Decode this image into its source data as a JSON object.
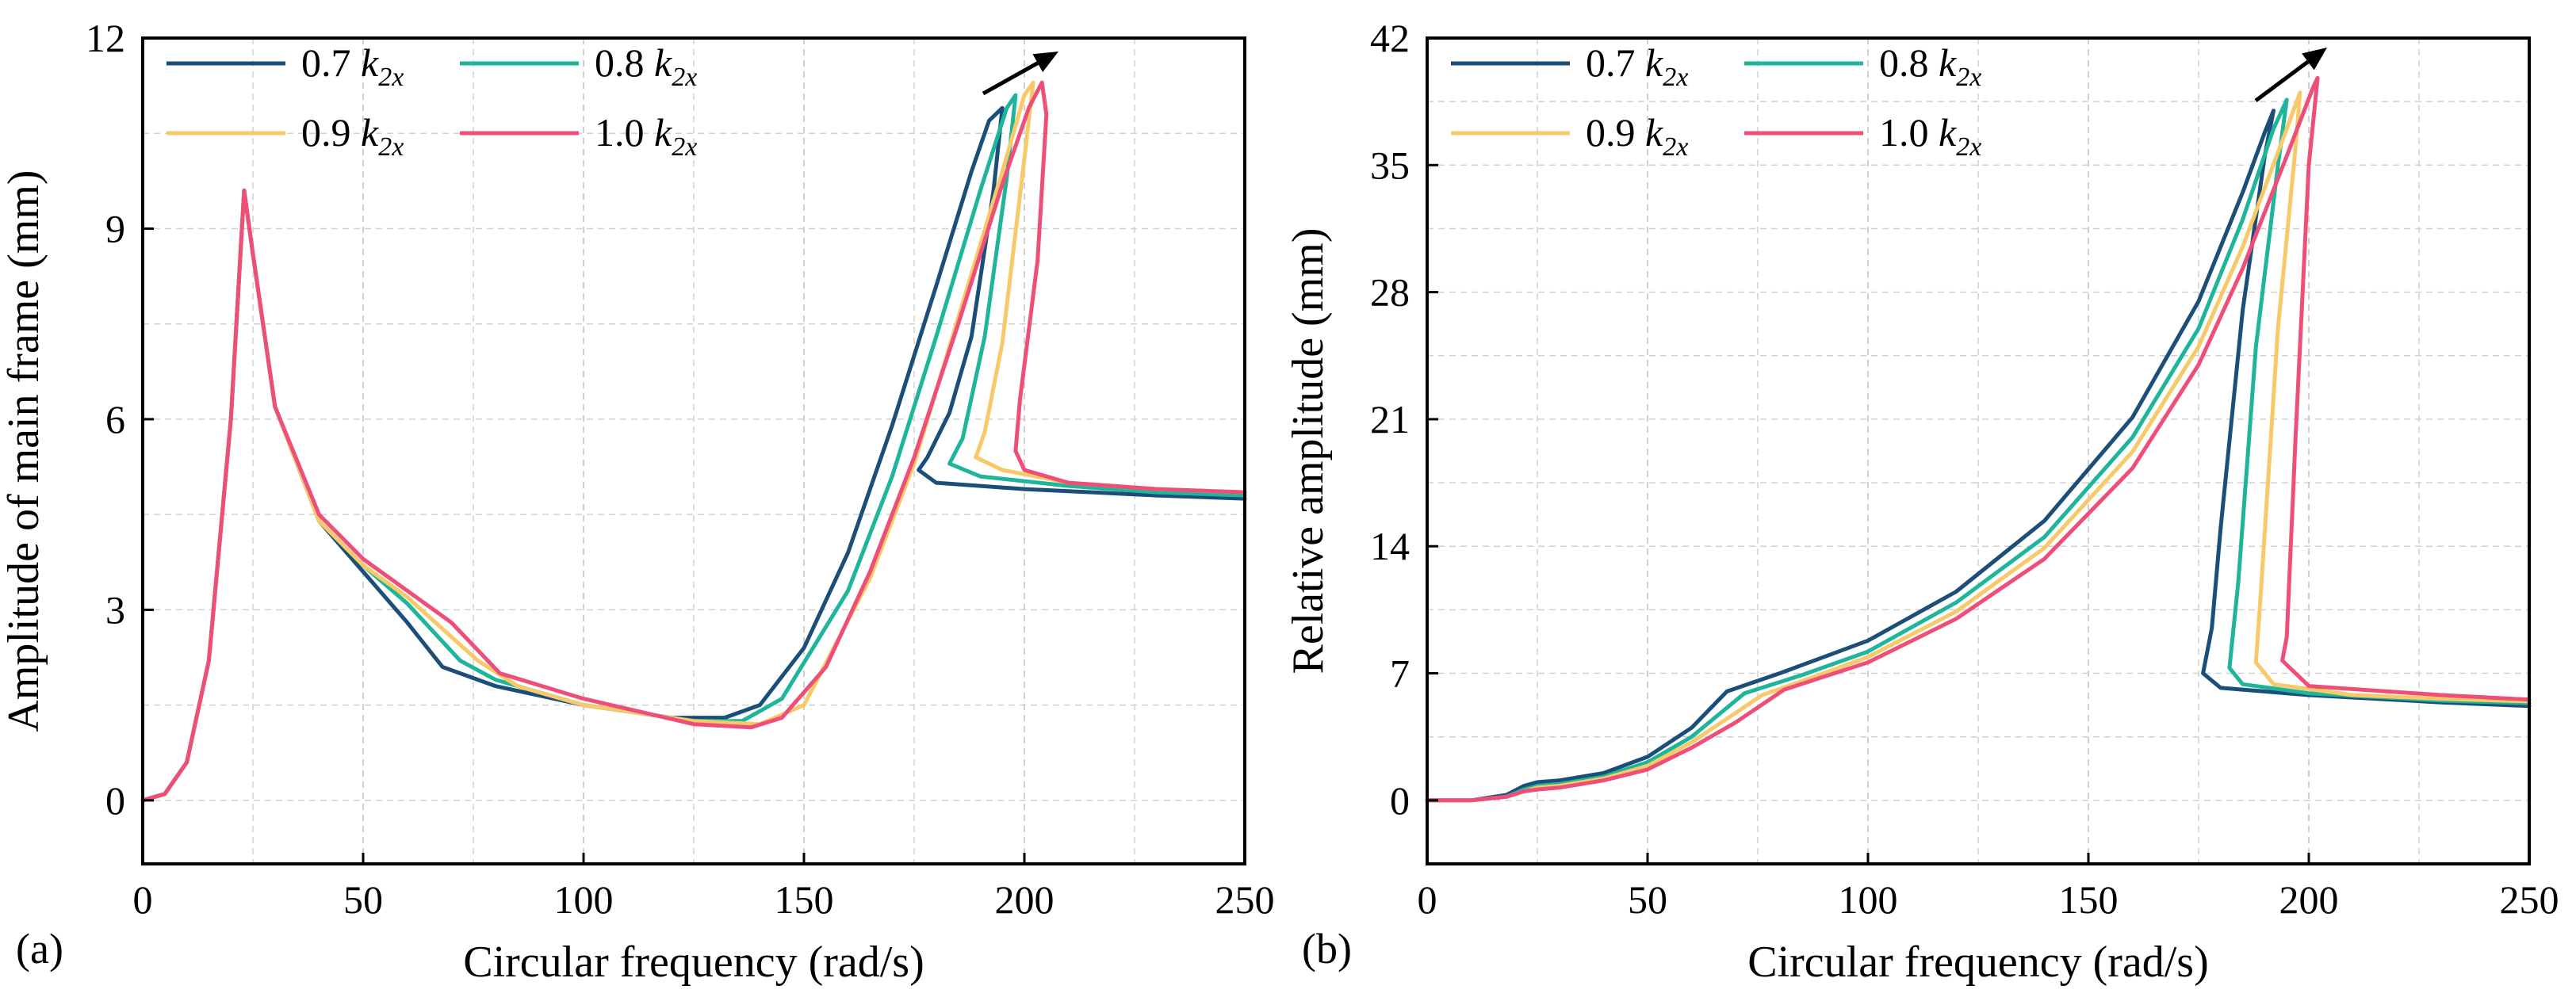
{
  "colors": {
    "c07": "#1b4f7a",
    "c08": "#1fb59a",
    "c09": "#f7c968",
    "c10": "#ee4f78",
    "grid": "#d0d0d0",
    "axis": "#000000"
  },
  "chart_data": [
    {
      "type": "line",
      "panel_label": "(a)",
      "xlabel": "Circular frequency (rad/s)",
      "ylabel": "Amplitude of main frame (mm)",
      "xlim": [
        0,
        250
      ],
      "ylim": [
        -1,
        12
      ],
      "xticks": [
        0,
        50,
        100,
        150,
        200,
        250
      ],
      "yticks": [
        0,
        3,
        6,
        9,
        12
      ],
      "xtick_labels": [
        "0",
        "50",
        "100",
        "150",
        "200",
        "250"
      ],
      "ytick_labels": [
        "0",
        "3",
        "6",
        "9",
        "12"
      ],
      "grid": true,
      "legend_position": "top-left",
      "annotation": "arrow pointing up-right near resonance peaks",
      "series": [
        {
          "name": "0.7",
          "legend_number": "0.7",
          "legend_k": "k",
          "legend_sub": "2x",
          "color_key": "c07",
          "x": [
            0,
            5,
            10,
            15,
            20,
            23,
            25,
            30,
            40,
            50,
            60,
            68,
            80,
            100,
            120,
            132,
            140,
            150,
            160,
            170,
            180,
            188,
            192,
            195,
            193,
            188,
            183,
            178,
            176,
            180,
            200,
            230,
            250
          ],
          "y": [
            0,
            0.1,
            0.6,
            2.2,
            6,
            9.6,
            8.6,
            6.2,
            4.4,
            3.6,
            2.8,
            2.1,
            1.8,
            1.5,
            1.3,
            1.3,
            1.5,
            2.4,
            3.9,
            5.9,
            8.1,
            9.9,
            10.7,
            10.9,
            9.6,
            7.3,
            6.1,
            5.4,
            5.2,
            5.0,
            4.9,
            4.8,
            4.75
          ]
        },
        {
          "name": "0.8",
          "legend_number": "0.8",
          "legend_k": "k",
          "legend_sub": "2x",
          "color_key": "c08",
          "x": [
            0,
            5,
            10,
            15,
            20,
            23,
            25,
            30,
            40,
            50,
            60,
            72,
            80,
            100,
            125,
            136,
            145,
            160,
            170,
            180,
            190,
            196,
            198,
            196,
            191,
            186,
            183,
            190,
            210,
            230,
            250
          ],
          "y": [
            0,
            0.1,
            0.6,
            2.2,
            6,
            9.6,
            8.6,
            6.2,
            4.4,
            3.7,
            3.1,
            2.2,
            1.9,
            1.5,
            1.25,
            1.25,
            1.6,
            3.3,
            5.1,
            7.3,
            9.6,
            10.9,
            11.1,
            9.8,
            7.3,
            5.7,
            5.3,
            5.1,
            4.95,
            4.85,
            4.8
          ]
        },
        {
          "name": "0.9",
          "legend_number": "0.9",
          "legend_k": "k",
          "legend_sub": "2x",
          "color_key": "c09",
          "x": [
            0,
            5,
            10,
            15,
            20,
            23,
            25,
            30,
            40,
            50,
            60,
            76,
            85,
            100,
            125,
            140,
            150,
            165,
            175,
            185,
            195,
            200,
            202,
            200,
            195,
            191,
            189,
            195,
            210,
            230,
            250
          ],
          "y": [
            0,
            0.1,
            0.6,
            2.2,
            6,
            9.6,
            8.6,
            6.2,
            4.4,
            3.7,
            3.2,
            2.2,
            1.8,
            1.5,
            1.25,
            1.2,
            1.5,
            3.5,
            5.3,
            7.6,
            9.9,
            11.1,
            11.3,
            10.1,
            7.2,
            5.8,
            5.4,
            5.2,
            5.0,
            4.9,
            4.85
          ]
        },
        {
          "name": "1.0",
          "legend_number": "1.0",
          "legend_k": "k",
          "legend_sub": "2x",
          "color_key": "c10",
          "x": [
            0,
            5,
            10,
            15,
            20,
            23,
            25,
            30,
            40,
            50,
            60,
            70,
            81,
            100,
            125,
            138,
            145,
            155,
            165,
            175,
            185,
            195,
            201,
            204,
            205,
            203,
            199,
            198,
            200,
            210,
            230,
            250
          ],
          "y": [
            0,
            0.1,
            0.6,
            2.2,
            6,
            9.6,
            8.6,
            6.2,
            4.5,
            3.8,
            3.3,
            2.8,
            2.0,
            1.6,
            1.2,
            1.15,
            1.3,
            2.1,
            3.6,
            5.4,
            7.5,
            9.7,
            10.9,
            11.3,
            10.8,
            8.5,
            6.3,
            5.5,
            5.2,
            5.0,
            4.9,
            4.85
          ]
        }
      ]
    },
    {
      "type": "line",
      "panel_label": "(b)",
      "xlabel": "Circular frequency (rad/s)",
      "ylabel": "Relative amplitude (mm)",
      "xlim": [
        0,
        250
      ],
      "ylim": [
        -3.5,
        42
      ],
      "xticks": [
        0,
        50,
        100,
        150,
        200,
        250
      ],
      "yticks": [
        0,
        7,
        14,
        21,
        28,
        35,
        42
      ],
      "xtick_labels": [
        "0",
        "50",
        "100",
        "150",
        "200",
        "250"
      ],
      "ytick_labels": [
        "0",
        "7",
        "14",
        "21",
        "28",
        "35",
        "42"
      ],
      "grid": true,
      "legend_position": "top-left",
      "annotation": "arrow pointing up-right near resonance peaks",
      "series": [
        {
          "name": "0.7",
          "legend_number": "0.7",
          "legend_k": "k",
          "legend_sub": "2x",
          "color_key": "c07",
          "x": [
            0,
            10,
            18,
            22,
            25,
            30,
            40,
            50,
            60,
            68,
            80,
            100,
            120,
            140,
            160,
            175,
            185,
            190,
            192,
            190,
            185,
            180,
            178,
            176,
            180,
            200,
            230,
            250
          ],
          "y": [
            0,
            0,
            0.3,
            0.8,
            1.0,
            1.1,
            1.5,
            2.4,
            4.0,
            6.0,
            7.0,
            8.8,
            11.5,
            15.4,
            21.1,
            27.5,
            33.5,
            36.8,
            38.0,
            35.5,
            27.0,
            15.0,
            9.5,
            7.0,
            6.2,
            5.8,
            5.4,
            5.2
          ]
        },
        {
          "name": "0.8",
          "legend_number": "0.8",
          "legend_k": "k",
          "legend_sub": "2x",
          "color_key": "c08",
          "x": [
            0,
            10,
            18,
            22,
            25,
            30,
            40,
            50,
            60,
            72,
            85,
            100,
            120,
            140,
            160,
            175,
            185,
            192,
            195,
            193,
            188,
            184,
            182,
            185,
            200,
            230,
            250
          ],
          "y": [
            0,
            0,
            0.2,
            0.6,
            0.8,
            0.9,
            1.3,
            2.1,
            3.5,
            5.9,
            6.9,
            8.2,
            10.9,
            14.5,
            20.0,
            26.0,
            32.0,
            37.0,
            38.6,
            35.0,
            25.0,
            12.0,
            7.3,
            6.4,
            5.9,
            5.5,
            5.35
          ]
        },
        {
          "name": "0.9",
          "legend_number": "0.9",
          "legend_k": "k",
          "legend_sub": "2x",
          "color_key": "c09",
          "x": [
            0,
            10,
            18,
            22,
            25,
            30,
            40,
            50,
            60,
            76,
            90,
            100,
            120,
            140,
            160,
            175,
            185,
            195,
            198,
            197,
            193,
            189,
            188,
            192,
            210,
            230,
            250
          ],
          "y": [
            0,
            0,
            0.2,
            0.5,
            0.7,
            0.8,
            1.2,
            1.9,
            3.2,
            5.8,
            7.0,
            7.9,
            10.4,
            13.9,
            19.2,
            25.0,
            30.5,
            37.0,
            39.0,
            36.0,
            26.0,
            11.0,
            7.6,
            6.4,
            5.8,
            5.6,
            5.45
          ]
        },
        {
          "name": "1.0",
          "legend_number": "1.0",
          "legend_k": "k",
          "legend_sub": "2x",
          "color_key": "c10",
          "x": [
            0,
            10,
            18,
            22,
            25,
            30,
            40,
            50,
            60,
            70,
            81,
            100,
            120,
            140,
            160,
            175,
            185,
            195,
            201,
            202,
            200,
            197,
            195,
            194,
            200,
            230,
            250
          ],
          "y": [
            0,
            0,
            0.2,
            0.5,
            0.6,
            0.7,
            1.1,
            1.7,
            2.9,
            4.3,
            6.1,
            7.6,
            10.0,
            13.3,
            18.3,
            24.0,
            29.3,
            35.5,
            39.3,
            39.8,
            35.0,
            20.0,
            9.0,
            7.7,
            6.3,
            5.8,
            5.55
          ]
        }
      ]
    }
  ]
}
